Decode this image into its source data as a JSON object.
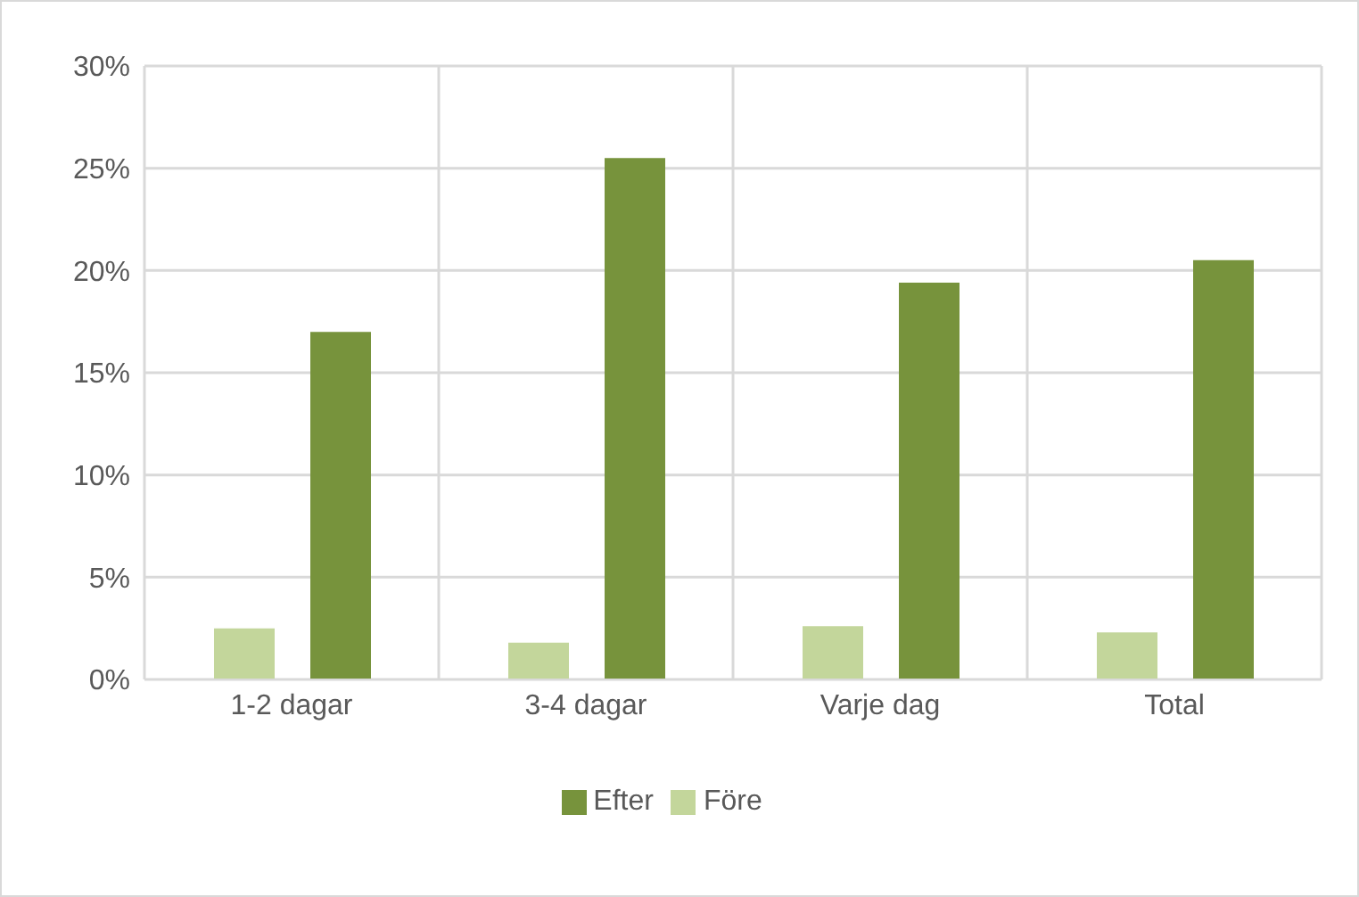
{
  "chart_data": {
    "type": "bar",
    "categories": [
      "1-2 dagar",
      "3-4 dagar",
      "Varje dag",
      "Total"
    ],
    "series": [
      {
        "name": "Före",
        "color": "#c3d69b",
        "values": [
          2.5,
          1.8,
          2.6,
          2.3
        ]
      },
      {
        "name": "Efter",
        "color": "#77933c",
        "values": [
          17.0,
          25.5,
          19.4,
          20.5
        ]
      }
    ],
    "ylim": [
      0,
      30
    ],
    "yticks": [
      {
        "value": 0,
        "label": "0%"
      },
      {
        "value": 5,
        "label": "5%"
      },
      {
        "value": 10,
        "label": "10%"
      },
      {
        "value": 15,
        "label": "15%"
      },
      {
        "value": 20,
        "label": "20%"
      },
      {
        "value": 25,
        "label": "25%"
      },
      {
        "value": 30,
        "label": "30%"
      }
    ],
    "grid": true,
    "legend": "bottom"
  }
}
